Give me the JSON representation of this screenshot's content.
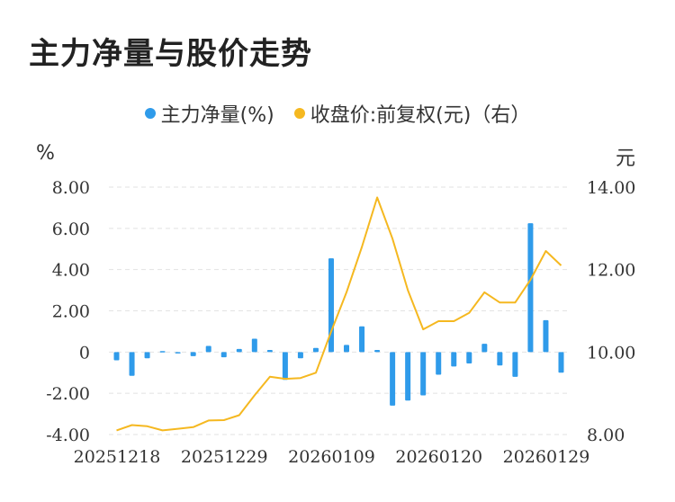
{
  "title": "主力净量与股价走势",
  "legend": {
    "bar_label": "主力净量(%)",
    "line_label": "收盘价:前复权(元)（右）"
  },
  "units": {
    "left": "%",
    "right": "元"
  },
  "colors": {
    "bar": "#2f9bea",
    "line": "#f5b820",
    "grid": "#e2e2e2"
  },
  "chart_data": {
    "type": "bar",
    "x_tick_labels": [
      "20251218",
      "20251229",
      "20260109",
      "20260120",
      "20260129"
    ],
    "left_ticks": [
      "8.00",
      "6.00",
      "4.00",
      "2.00",
      "0",
      "-2.00",
      "-4.00"
    ],
    "right_ticks": [
      "14.00",
      "12.00",
      "10.00",
      "8.00"
    ],
    "ylim_left": [
      -4,
      8
    ],
    "ylim_right": [
      8,
      14
    ],
    "grid": true,
    "legend_position": "top",
    "series": [
      {
        "name": "主力净量(%)",
        "type": "bar",
        "axis": "left",
        "values": [
          -0.4,
          -1.15,
          -0.3,
          0.05,
          -0.05,
          -0.2,
          0.3,
          -0.25,
          0.15,
          0.65,
          0.1,
          -1.35,
          -0.3,
          0.2,
          4.55,
          0.35,
          1.25,
          0.1,
          -2.6,
          -2.35,
          -2.1,
          -1.1,
          -0.7,
          -0.55,
          0.4,
          -0.65,
          -1.2,
          6.25,
          1.55,
          -1.0
        ]
      },
      {
        "name": "收盘价:前复权(元)（右）",
        "type": "line",
        "axis": "right",
        "values": [
          8.1,
          8.23,
          8.2,
          8.1,
          8.14,
          8.18,
          8.34,
          8.35,
          8.47,
          8.95,
          9.4,
          9.35,
          9.37,
          9.5,
          10.5,
          11.45,
          12.55,
          13.75,
          12.75,
          11.5,
          10.55,
          10.75,
          10.75,
          10.95,
          11.45,
          11.2,
          11.2,
          11.75,
          12.45,
          12.1
        ]
      }
    ]
  }
}
